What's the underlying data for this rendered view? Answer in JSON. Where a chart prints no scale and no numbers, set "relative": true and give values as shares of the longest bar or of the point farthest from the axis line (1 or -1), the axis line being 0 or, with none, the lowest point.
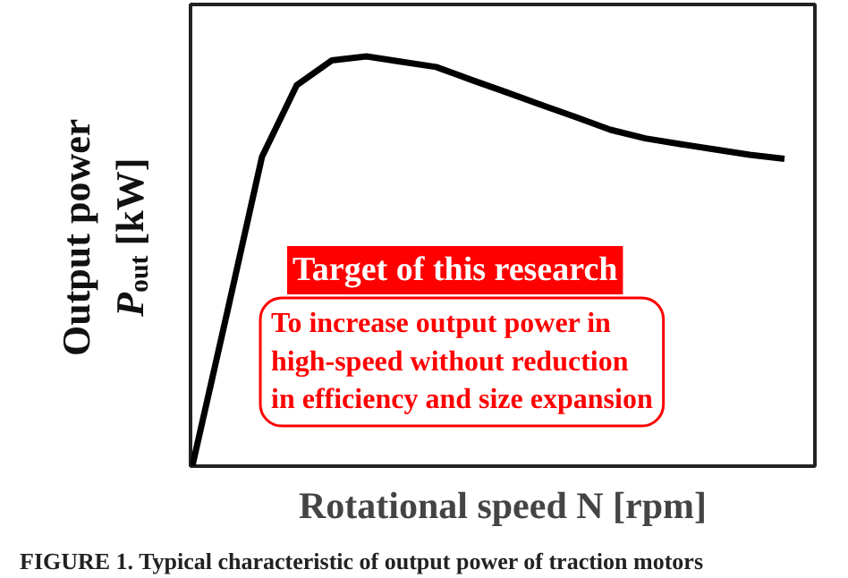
{
  "chart_data": {
    "type": "line",
    "relative": true,
    "grid": false,
    "marker": "none",
    "line_style": "solid",
    "xlabel": "Rotational speed N [rpm]",
    "ylabel": "Output power\nP$_{out}$ [kW]",
    "categories": [
      null,
      null,
      null,
      null,
      null,
      null,
      null,
      null,
      null,
      null,
      null,
      null,
      null,
      null,
      null,
      null,
      null,
      null
    ],
    "series": [
      {
        "color": "#000000",
        "values": [
          0,
          0.375,
          0.755,
          0.93,
          0.99,
          1.0,
          0.987,
          0.974,
          0.943,
          0.913,
          0.882,
          0.852,
          0.821,
          0.8,
          0.786,
          0.773,
          0.76,
          0.75
        ]
      }
    ],
    "annotations": [
      "Target of this research",
      "To increase output power in\nhigh-speed without reduction\nin efficiency and size expansion",
      "FIGURE 1. Typical characteristic of output power of traction motors"
    ]
  }
}
